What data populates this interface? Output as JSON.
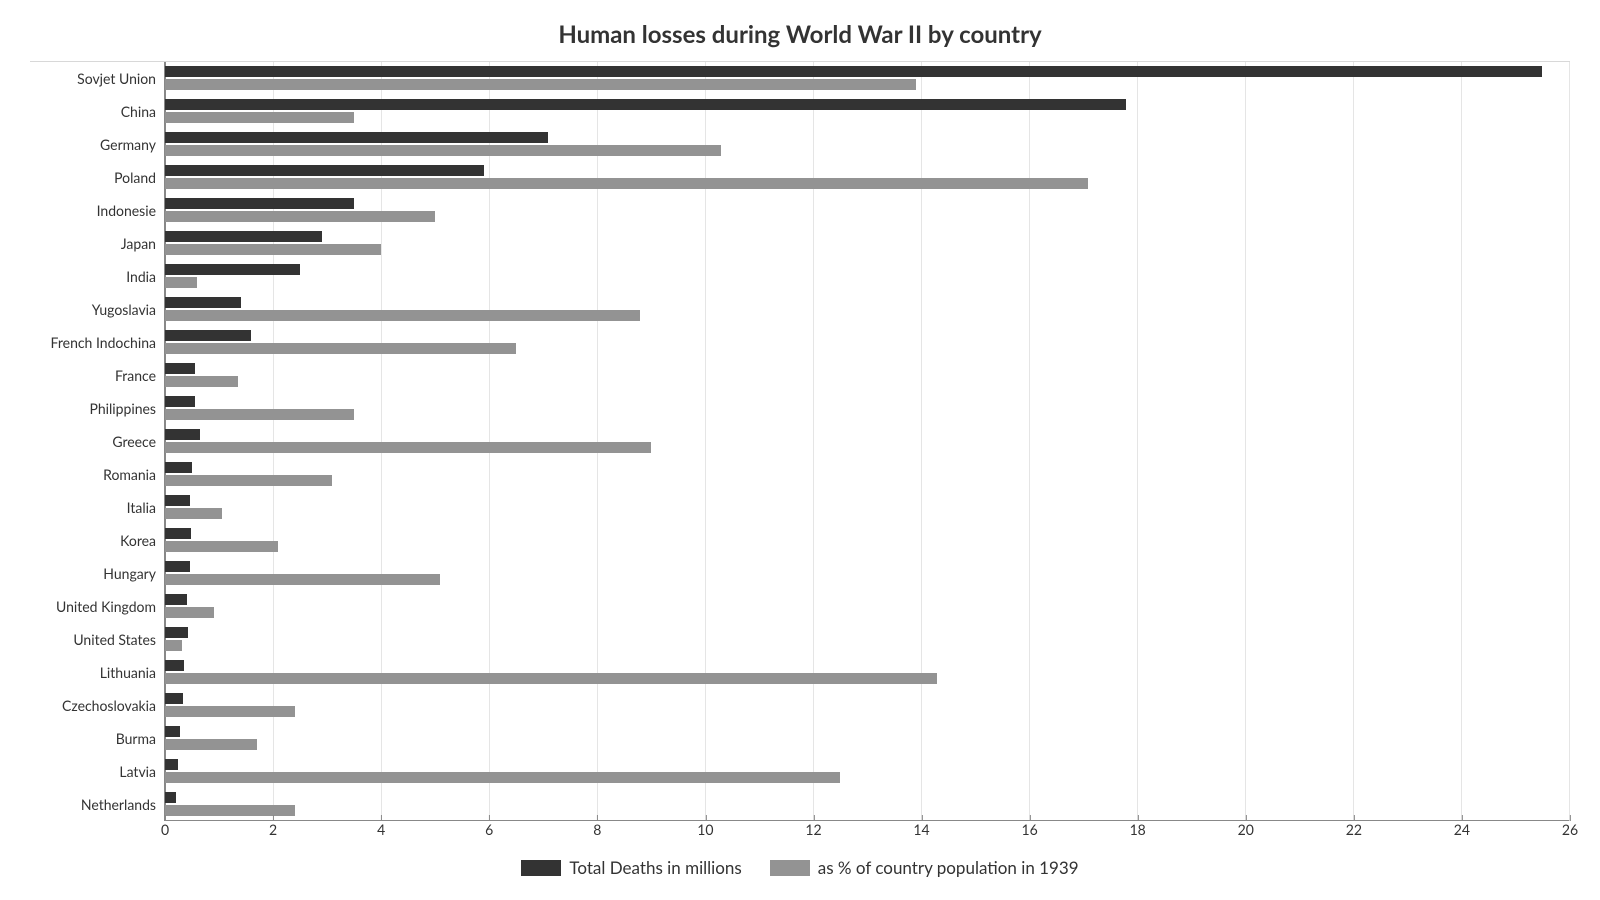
{
  "chart": {
    "type": "bar-grouped-horizontal",
    "title": "Human losses during World War II by country",
    "title_fontsize": 24,
    "title_color": "#333333",
    "background_color": "#ffffff",
    "grid_color": "#e5e5e5",
    "axis_color": "#888888",
    "label_fontsize": 14,
    "legend_fontsize": 17,
    "x": {
      "min": 0,
      "max": 26,
      "tick_step": 2,
      "ticks": [
        0,
        2,
        4,
        6,
        8,
        10,
        12,
        14,
        16,
        18,
        20,
        22,
        24,
        26
      ]
    },
    "series": [
      {
        "key": "deaths_millions",
        "label": "Total Deaths in millions",
        "color": "#333333"
      },
      {
        "key": "pct_pop_1939",
        "label": "as % of country population in 1939",
        "color": "#939393"
      }
    ],
    "categories": [
      {
        "label": "Sovjet Union",
        "deaths_millions": 25.5,
        "pct_pop_1939": 13.9
      },
      {
        "label": "China",
        "deaths_millions": 17.8,
        "pct_pop_1939": 3.5
      },
      {
        "label": "Germany",
        "deaths_millions": 7.1,
        "pct_pop_1939": 10.3
      },
      {
        "label": "Poland",
        "deaths_millions": 5.9,
        "pct_pop_1939": 17.1
      },
      {
        "label": "Indonesie",
        "deaths_millions": 3.5,
        "pct_pop_1939": 5.0
      },
      {
        "label": "Japan",
        "deaths_millions": 2.9,
        "pct_pop_1939": 4.0
      },
      {
        "label": "India",
        "deaths_millions": 2.5,
        "pct_pop_1939": 0.6
      },
      {
        "label": "Yugoslavia",
        "deaths_millions": 1.4,
        "pct_pop_1939": 8.8
      },
      {
        "label": "French Indochina",
        "deaths_millions": 1.6,
        "pct_pop_1939": 6.5
      },
      {
        "label": "France",
        "deaths_millions": 0.56,
        "pct_pop_1939": 1.35
      },
      {
        "label": "Philippines",
        "deaths_millions": 0.55,
        "pct_pop_1939": 3.5
      },
      {
        "label": "Greece",
        "deaths_millions": 0.65,
        "pct_pop_1939": 9.0
      },
      {
        "label": "Romania",
        "deaths_millions": 0.5,
        "pct_pop_1939": 3.1
      },
      {
        "label": "Italia",
        "deaths_millions": 0.47,
        "pct_pop_1939": 1.05
      },
      {
        "label": "Korea",
        "deaths_millions": 0.48,
        "pct_pop_1939": 2.1
      },
      {
        "label": "Hungary",
        "deaths_millions": 0.47,
        "pct_pop_1939": 5.1
      },
      {
        "label": "United Kingdom",
        "deaths_millions": 0.4,
        "pct_pop_1939": 0.9
      },
      {
        "label": "United States",
        "deaths_millions": 0.42,
        "pct_pop_1939": 0.32
      },
      {
        "label": "Lithuania",
        "deaths_millions": 0.35,
        "pct_pop_1939": 14.3
      },
      {
        "label": "Czechoslovakia",
        "deaths_millions": 0.34,
        "pct_pop_1939": 2.4
      },
      {
        "label": "Burma",
        "deaths_millions": 0.27,
        "pct_pop_1939": 1.7
      },
      {
        "label": "Latvia",
        "deaths_millions": 0.25,
        "pct_pop_1939": 12.5
      },
      {
        "label": "Netherlands",
        "deaths_millions": 0.21,
        "pct_pop_1939": 2.4
      }
    ]
  }
}
